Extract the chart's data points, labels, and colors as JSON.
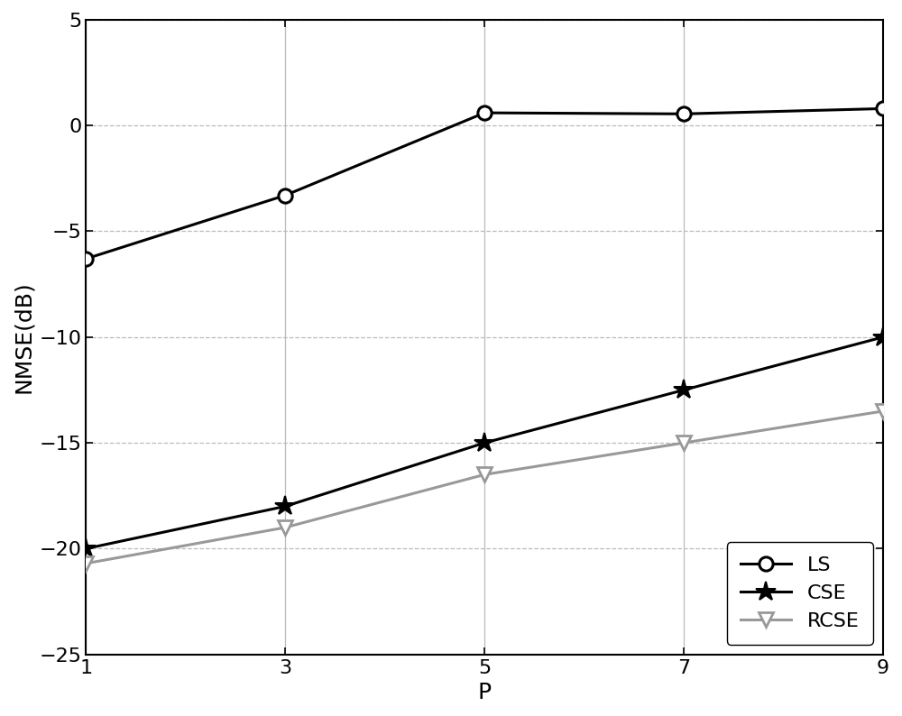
{
  "x": [
    1,
    3,
    5,
    7,
    9
  ],
  "LS_y": [
    -6.3,
    -3.3,
    0.6,
    0.55,
    0.8
  ],
  "CSE_y": [
    -20.0,
    -18.0,
    -15.0,
    -12.5,
    -10.0
  ],
  "RCSE_y": [
    -20.7,
    -19.0,
    -16.5,
    -15.0,
    -13.5
  ],
  "LS_color": "#000000",
  "CSE_color": "#000000",
  "RCSE_color": "#999999",
  "xlabel": "P",
  "ylabel": "NMSE(dB)",
  "xlim": [
    1,
    9
  ],
  "ylim": [
    -25,
    5
  ],
  "yticks": [
    -25,
    -20,
    -15,
    -10,
    -5,
    0,
    5
  ],
  "xticks": [
    1,
    3,
    5,
    7,
    9
  ],
  "background_color": "#ffffff",
  "linewidth": 2.2,
  "LS_markersize": 11,
  "CSE_markersize": 16,
  "RCSE_markersize": 12,
  "legend_loc": "lower right",
  "legend_fontsize": 16,
  "tick_labelsize": 16,
  "axis_labelsize": 18
}
